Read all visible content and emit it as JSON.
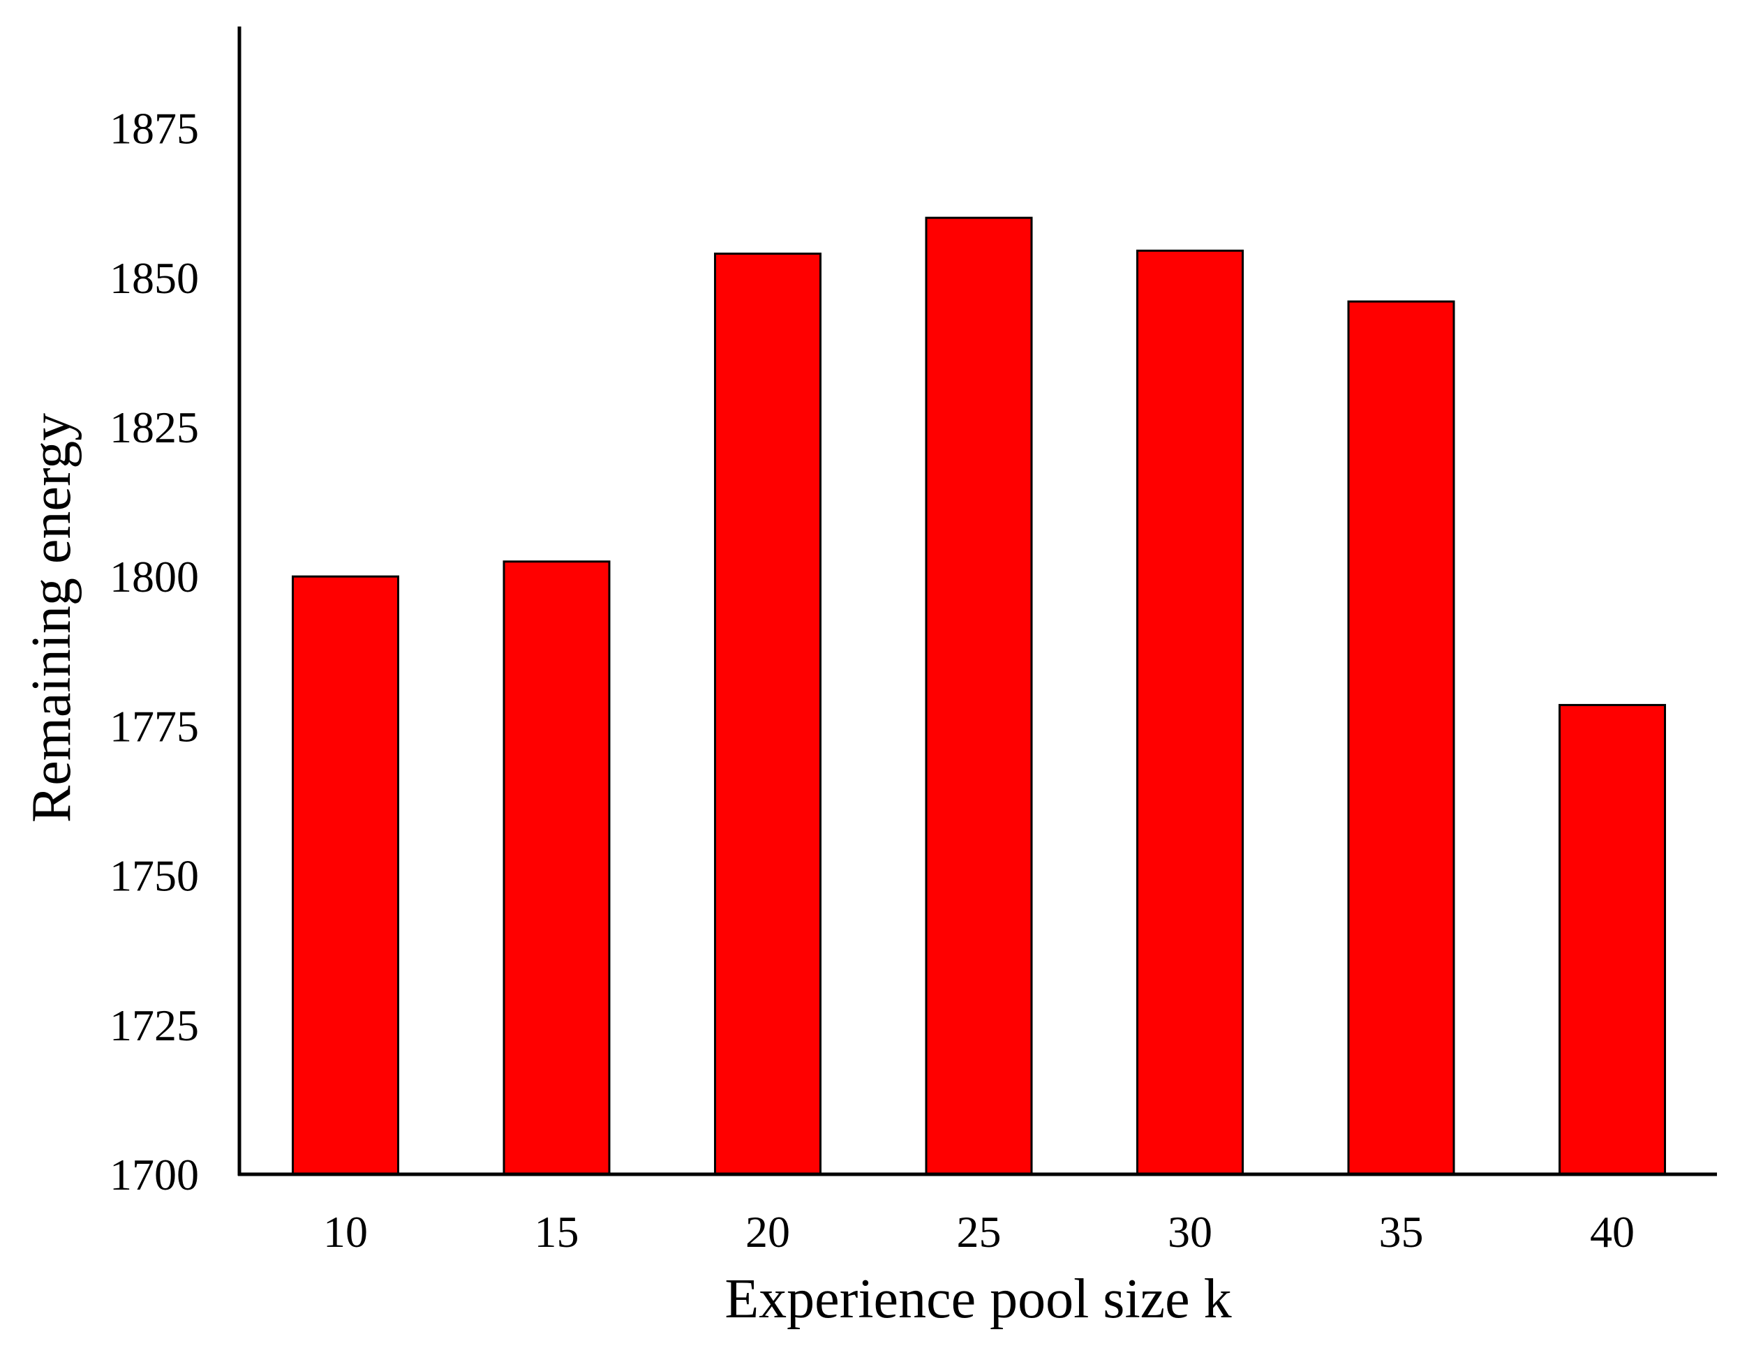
{
  "chart_data": {
    "type": "bar",
    "title": "",
    "xlabel": "Experience pool size k",
    "ylabel": "Remaining energy",
    "categories": [
      "10",
      "15",
      "20",
      "25",
      "30",
      "35",
      "40"
    ],
    "values": [
      1800,
      1802.5,
      1854,
      1860,
      1854.5,
      1846,
      1778.5
    ],
    "ylim": [
      1700,
      1892
    ],
    "yticks": [
      1700,
      1725,
      1750,
      1775,
      1800,
      1825,
      1850,
      1875
    ],
    "ytick_labels": [
      "1700",
      "1725",
      "1750",
      "1775",
      "1800",
      "1825",
      "1850",
      "1875"
    ],
    "grid": false,
    "legend": "none",
    "bar_color": "#ff0000",
    "bar_edge_color": "#000000",
    "axis_color": "#000000"
  }
}
